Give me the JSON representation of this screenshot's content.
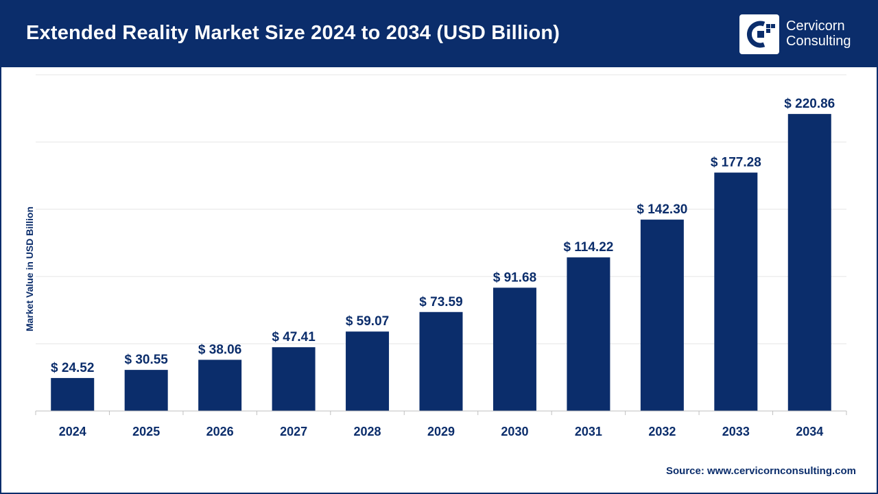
{
  "header": {
    "title": "Extended Reality Market Size 2024 to 2034 (USD Billion)",
    "logo_line1": "Cervicorn",
    "logo_line2": "Consulting"
  },
  "colors": {
    "brand": "#0b2d6b",
    "bar": "#0b2d6b",
    "grid": "#e6e6e6",
    "axis": "#bfbfbf",
    "text": "#0b2d6b"
  },
  "icons": {
    "logo": "cervicorn-logo-icon"
  },
  "chart_data": {
    "type": "bar",
    "title": "Extended Reality Market Size 2024 to 2034 (USD Billion)",
    "xlabel": "",
    "ylabel": "Market Value in USD Billion",
    "categories": [
      "2024",
      "2025",
      "2026",
      "2027",
      "2028",
      "2029",
      "2030",
      "2031",
      "2032",
      "2033",
      "2034"
    ],
    "values": [
      24.52,
      30.55,
      38.06,
      47.41,
      59.07,
      73.59,
      91.68,
      114.22,
      142.3,
      177.28,
      220.86
    ],
    "data_labels": [
      "$ 24.52",
      "$ 30.55",
      "$ 38.06",
      "$ 47.41",
      "$ 59.07",
      "$ 73.59",
      "$ 91.68",
      "$ 114.22",
      "$ 142.30",
      "$ 177.28",
      "$ 220.86"
    ],
    "ylim": [
      0,
      250
    ],
    "grid": true,
    "legend": "none"
  },
  "footer": {
    "source": "Source: www.cervicornconsulting.com"
  }
}
